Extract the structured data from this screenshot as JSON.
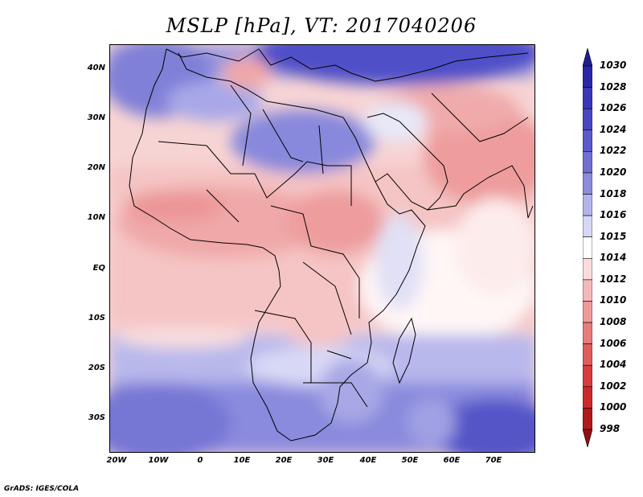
{
  "title": "MSLP [hPa], VT: 2017040206",
  "credit": "GrADS: IGES/COLA",
  "y_axis": [
    "40N",
    "30N",
    "20N",
    "10N",
    "EQ",
    "10S",
    "20S",
    "30S"
  ],
  "x_axis": [
    "20W",
    "10W",
    "0",
    "10E",
    "20E",
    "30E",
    "40E",
    "50E",
    "60E",
    "70E"
  ],
  "colorbar": {
    "levels": [
      "1030",
      "1028",
      "1026",
      "1024",
      "1022",
      "1020",
      "1018",
      "1016",
      "1015",
      "1014",
      "1012",
      "1010",
      "1008",
      "1006",
      "1004",
      "1002",
      "1000",
      "998"
    ],
    "colors": [
      "#1e1e8c",
      "#2828a6",
      "#3838b8",
      "#4848c2",
      "#5a5acc",
      "#7070d4",
      "#8c8cdc",
      "#b4b4ec",
      "#d6d6f6",
      "#ffffff",
      "#fadcdc",
      "#f5b8b8",
      "#ee9a9a",
      "#e67c7c",
      "#df5c5c",
      "#d83e3e",
      "#cc2a2a",
      "#b01a1a",
      "#901010"
    ]
  }
}
